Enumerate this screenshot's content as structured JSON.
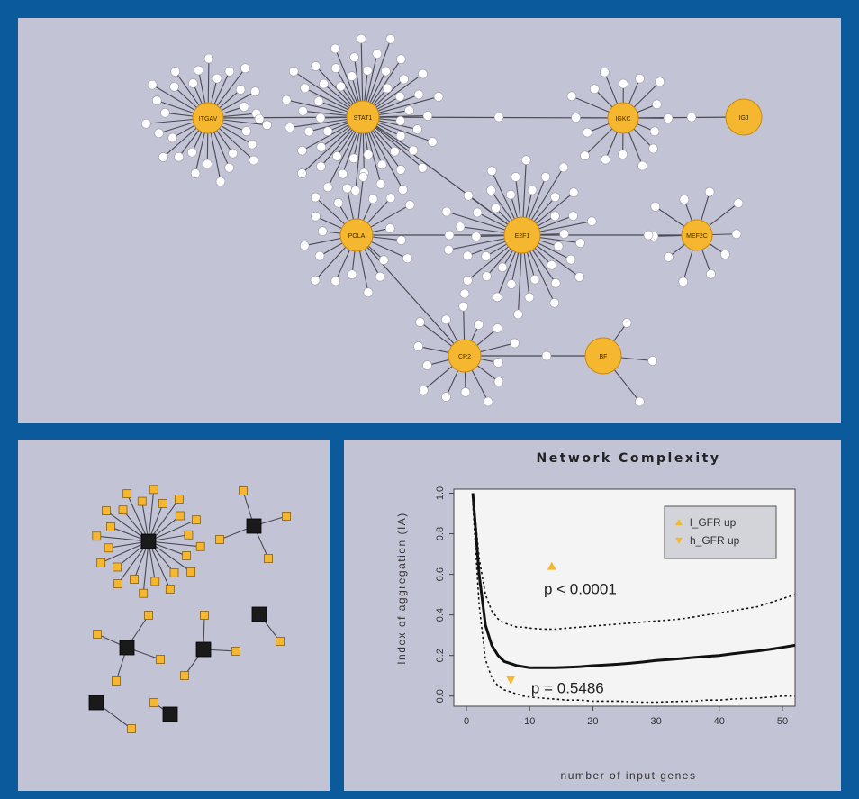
{
  "colors": {
    "frame": "#0b5a9c",
    "panel": "#c2c3d4",
    "hub": "#f5b730",
    "hub_stroke": "#c98a12",
    "leaf": "#ffffff",
    "square_orange": "#f5b730",
    "square_black": "#1a1a1a",
    "plot_bg": "#f4f4f4",
    "legend_bg": "#d3d3da"
  },
  "network": {
    "hubs": [
      {
        "id": "ITGAV",
        "label": "ITGAV"
      },
      {
        "id": "STAT1",
        "label": "STAT1"
      },
      {
        "id": "IGKC",
        "label": "IGKC"
      },
      {
        "id": "IGJ",
        "label": "IGJ"
      },
      {
        "id": "POLA",
        "label": "POLA"
      },
      {
        "id": "E2F1",
        "label": "E2F1"
      },
      {
        "id": "MEF2C",
        "label": "MEF2C"
      },
      {
        "id": "CR2",
        "label": "CR2"
      },
      {
        "id": "BF",
        "label": "BF"
      }
    ],
    "links": [
      [
        "ITGAV",
        "STAT1"
      ],
      [
        "STAT1",
        "IGKC"
      ],
      [
        "IGKC",
        "IGJ"
      ],
      [
        "STAT1",
        "E2F1"
      ],
      [
        "POLA",
        "E2F1"
      ],
      [
        "E2F1",
        "MEF2C"
      ],
      [
        "POLA",
        "CR2"
      ],
      [
        "CR2",
        "BF"
      ]
    ],
    "leaf_counts": {
      "ITGAV": 30,
      "STAT1": 52,
      "IGKC": 16,
      "POLA": 20,
      "E2F1": 38,
      "MEF2C": 10,
      "CR2": 14,
      "BF": 3
    }
  },
  "clusters": [
    {
      "id": "c1",
      "leaves": 24
    },
    {
      "id": "c2",
      "leaves": 3
    },
    {
      "id": "c3",
      "leaves": 4
    },
    {
      "id": "c4",
      "leaves": 4
    },
    {
      "id": "c5",
      "leaves": 1
    },
    {
      "id": "c6",
      "leaves": 1
    },
    {
      "id": "c7",
      "leaves": 1
    }
  ],
  "chart_data": {
    "type": "line",
    "title": "Network Complexity",
    "xlabel": "number of input genes",
    "ylabel": "Index of aggregation (IA)",
    "xlim": [
      -2,
      52
    ],
    "ylim": [
      -0.05,
      1.02
    ],
    "xticks": [
      "0",
      "10",
      "20",
      "30",
      "40",
      "50"
    ],
    "yticks": [
      "0.0",
      "0.2",
      "0.4",
      "0.6",
      "0.8",
      "1.0"
    ],
    "x": [
      1,
      2,
      3,
      4,
      5,
      6,
      7,
      8,
      9,
      10,
      12,
      14,
      16,
      18,
      20,
      22,
      24,
      26,
      28,
      30,
      32,
      34,
      36,
      38,
      40,
      42,
      44,
      46,
      48,
      50,
      52
    ],
    "series": [
      {
        "line": "solid",
        "values": [
          1.0,
          0.6,
          0.35,
          0.25,
          0.2,
          0.17,
          0.16,
          0.15,
          0.145,
          0.14,
          0.14,
          0.14,
          0.142,
          0.145,
          0.15,
          0.153,
          0.157,
          0.162,
          0.168,
          0.175,
          0.18,
          0.185,
          0.19,
          0.195,
          0.2,
          0.208,
          0.215,
          0.222,
          0.23,
          0.24,
          0.25
        ]
      },
      {
        "line": "dotted",
        "values": [
          1.0,
          0.68,
          0.5,
          0.42,
          0.38,
          0.36,
          0.35,
          0.34,
          0.34,
          0.335,
          0.33,
          0.33,
          0.335,
          0.34,
          0.345,
          0.35,
          0.355,
          0.36,
          0.365,
          0.37,
          0.375,
          0.38,
          0.39,
          0.4,
          0.41,
          0.42,
          0.43,
          0.44,
          0.46,
          0.48,
          0.5
        ]
      },
      {
        "line": "dotted",
        "values": [
          0.95,
          0.45,
          0.18,
          0.09,
          0.05,
          0.03,
          0.02,
          0.01,
          0.0,
          -0.005,
          -0.01,
          -0.015,
          -0.02,
          -0.02,
          -0.025,
          -0.025,
          -0.025,
          -0.028,
          -0.03,
          -0.03,
          -0.028,
          -0.026,
          -0.025,
          -0.02,
          -0.02,
          -0.015,
          -0.012,
          -0.01,
          -0.005,
          0.0,
          0.0
        ]
      }
    ],
    "markers": [
      {
        "name": "l_GFR up",
        "x": 13.5,
        "y": 0.64,
        "shape": "triangle-up"
      },
      {
        "name": "h_GFR up",
        "x": 7,
        "y": 0.08,
        "shape": "triangle-down"
      }
    ],
    "legend": {
      "position": "top-right",
      "entries": [
        "l_GFR up",
        "h_GFR up"
      ]
    },
    "annotations": [
      {
        "text": "p < 0.0001",
        "x": 18,
        "y": 0.53
      },
      {
        "text": "p = 0.5486",
        "x": 16,
        "y": 0.04
      }
    ]
  }
}
